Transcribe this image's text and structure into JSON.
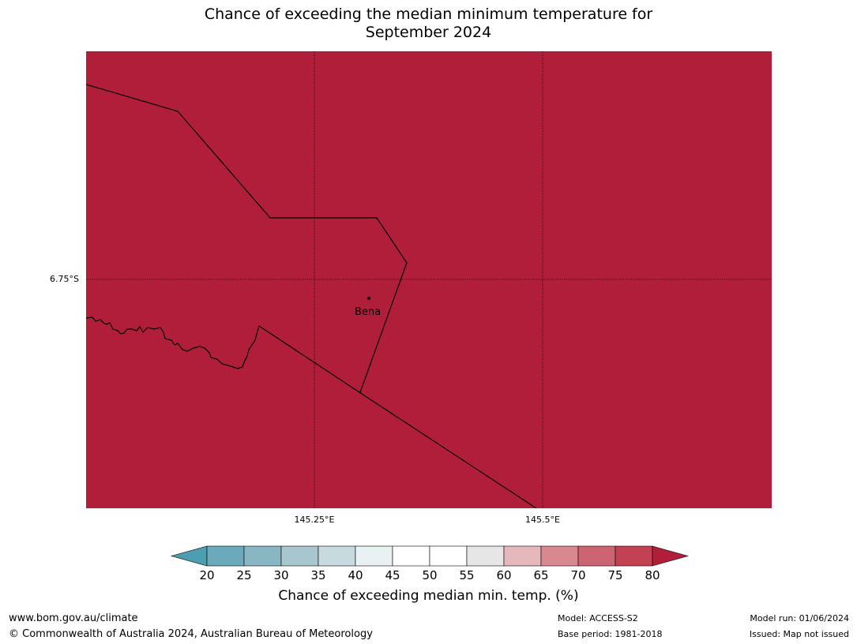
{
  "title": {
    "line1": "Chance of exceeding the median minimum temperature for",
    "line2": "September 2024"
  },
  "map": {
    "fill_color": "#b01e3a",
    "latitude_labels": [
      "6.75°S"
    ],
    "longitude_labels": [
      "145.25°E",
      "145.5°E"
    ],
    "place": {
      "name": "Bena"
    }
  },
  "colorbar": {
    "ticks": [
      "20",
      "25",
      "30",
      "35",
      "40",
      "45",
      "50",
      "55",
      "60",
      "65",
      "70",
      "75",
      "80"
    ],
    "colors": [
      "#4b9fb0",
      "#6aaabb",
      "#88b6c3",
      "#a8c6cd",
      "#c8dadd",
      "#e9f1f2",
      "#ffffff",
      "#ffffff",
      "#e6e6e6",
      "#e4b8bd",
      "#d98890",
      "#cc6472",
      "#c24254",
      "#b01e3a"
    ],
    "label": "Chance of exceeding median min. temp. (%)"
  },
  "footer": {
    "url": "www.bom.gov.au/climate",
    "copyright": "© Commonwealth of Australia 2024, Australian Bureau of Meteorology",
    "model": "Model: ACCESS-S2",
    "base_period": "Base period: 1981-2018",
    "model_run": "Model run: 01/06/2024",
    "issued": "Issued: Map not issued"
  }
}
